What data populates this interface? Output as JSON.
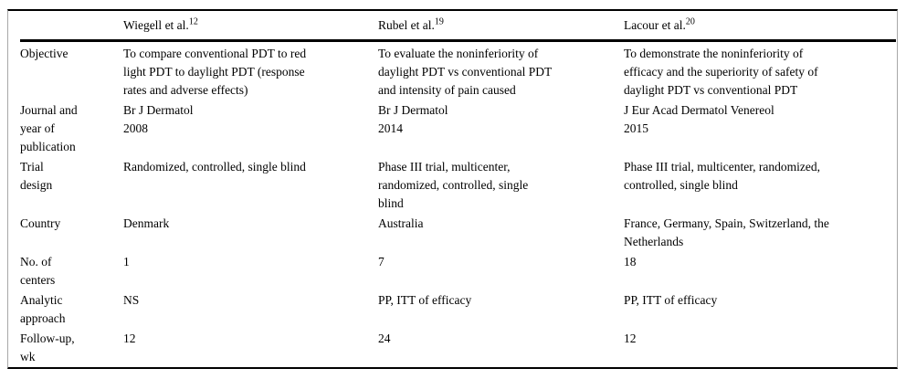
{
  "document": {
    "colors": {
      "background": "#ffffff",
      "text": "#000000",
      "rule": "#000000",
      "frame_edge": "#a8a8a8"
    },
    "table": {
      "header": [
        {
          "label": "",
          "ref": ""
        },
        {
          "label": "Wiegell et al.",
          "ref": "12"
        },
        {
          "label": "Rubel et al.",
          "ref": "19"
        },
        {
          "label": "Lacour et al.",
          "ref": "20"
        }
      ],
      "rows": [
        {
          "label": "Objective",
          "cells": [
            "To compare conventional PDT to red\nlight PDT to daylight PDT (response\nrates and adverse effects)",
            "To evaluate the noninferiority of\ndaylight PDT vs conventional PDT\nand intensity of pain caused",
            "To demonstrate the noninferiority of\nefficacy and the superiority of safety of\ndaylight PDT vs conventional PDT"
          ]
        },
        {
          "label": "Journal and\nyear of\npublication",
          "cells": [
            "Br J Dermatol\n2008",
            "Br J Dermatol\n2014",
            "J Eur Acad Dermatol Venereol\n2015"
          ]
        },
        {
          "label": "Trial\ndesign",
          "cells": [
            "Randomized, controlled, single blind",
            "Phase III trial, multicenter,\nrandomized, controlled, single\nblind",
            "Phase III trial, multicenter, randomized,\ncontrolled, single blind"
          ]
        },
        {
          "label": "Country",
          "cells": [
            "Denmark",
            "Australia",
            "France, Germany, Spain, Switzerland, the\nNetherlands"
          ]
        },
        {
          "label": "No. of\ncenters",
          "cells": [
            "1",
            "7",
            "18"
          ]
        },
        {
          "label": "Analytic\napproach",
          "cells": [
            "NS",
            "PP, ITT of efficacy",
            "PP, ITT of efficacy"
          ]
        },
        {
          "label": "Follow-up,\nwk",
          "cells": [
            "12",
            "24",
            "12"
          ]
        }
      ]
    }
  }
}
